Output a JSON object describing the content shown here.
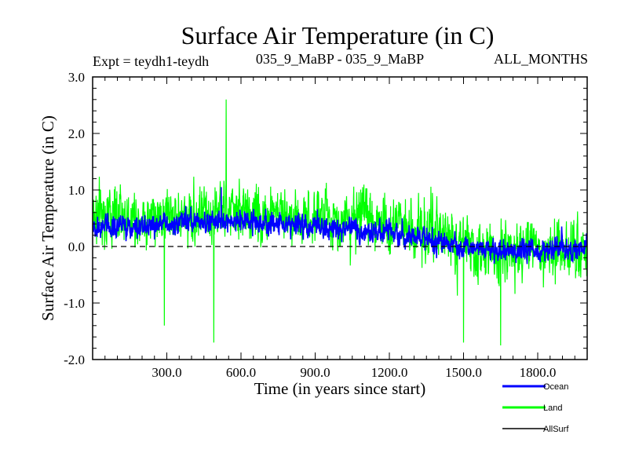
{
  "chart_data": {
    "type": "line",
    "title": "Surface Air Temperature (in C)",
    "subtitle_left": "Expt = teydh1-teydh",
    "subtitle_center": "035_9_MaBP - 035_9_MaBP",
    "subtitle_right": "ALL_MONTHS",
    "xlabel": "Time (in years since start)",
    "ylabel": "Surface Air Temperature (in C)",
    "xlim": [
      0,
      2000
    ],
    "ylim": [
      -2.0,
      3.0
    ],
    "xticks": [
      300,
      600,
      900,
      1200,
      1500,
      1800
    ],
    "xtick_labels": [
      "300.0",
      "600.0",
      "900.0",
      "1200.0",
      "1500.0",
      "1800.0"
    ],
    "yticks": [
      -2.0,
      -1.0,
      0.0,
      1.0,
      2.0,
      3.0
    ],
    "ytick_labels": [
      "-2.0",
      "-1.0",
      "0.0",
      "1.0",
      "2.0",
      "3.0"
    ],
    "zero_line": "dashed",
    "legend_position": "bottom-right",
    "series": [
      {
        "name": "Land",
        "color": "#00ff00",
        "trend_x": [
          0,
          300,
          550,
          900,
          1200,
          1400,
          1500,
          1700,
          2000
        ],
        "trend_y": [
          0.55,
          0.55,
          0.6,
          0.55,
          0.45,
          0.2,
          -0.05,
          -0.1,
          0.05
        ],
        "noise_amplitude": 0.75,
        "extremes": [
          {
            "x": 540,
            "y": 2.6
          },
          {
            "x": 290,
            "y": -1.4
          },
          {
            "x": 490,
            "y": -1.7
          },
          {
            "x": 1500,
            "y": -1.7
          },
          {
            "x": 1650,
            "y": -1.75
          }
        ]
      },
      {
        "name": "Ocean",
        "color": "#0000ff",
        "trend_x": [
          0,
          300,
          550,
          900,
          1200,
          1400,
          1500,
          1700,
          2000
        ],
        "trend_y": [
          0.35,
          0.4,
          0.45,
          0.35,
          0.25,
          0.1,
          -0.05,
          -0.1,
          0.0
        ],
        "noise_amplitude": 0.3,
        "extremes": [
          {
            "x": 520,
            "y": 1.05
          }
        ]
      },
      {
        "name": "AllSurf",
        "color": "#000000",
        "trend_x": [
          0,
          2000
        ],
        "trend_y": [
          0.0,
          0.0
        ],
        "noise_amplitude": 0.0,
        "extremes": []
      }
    ]
  }
}
